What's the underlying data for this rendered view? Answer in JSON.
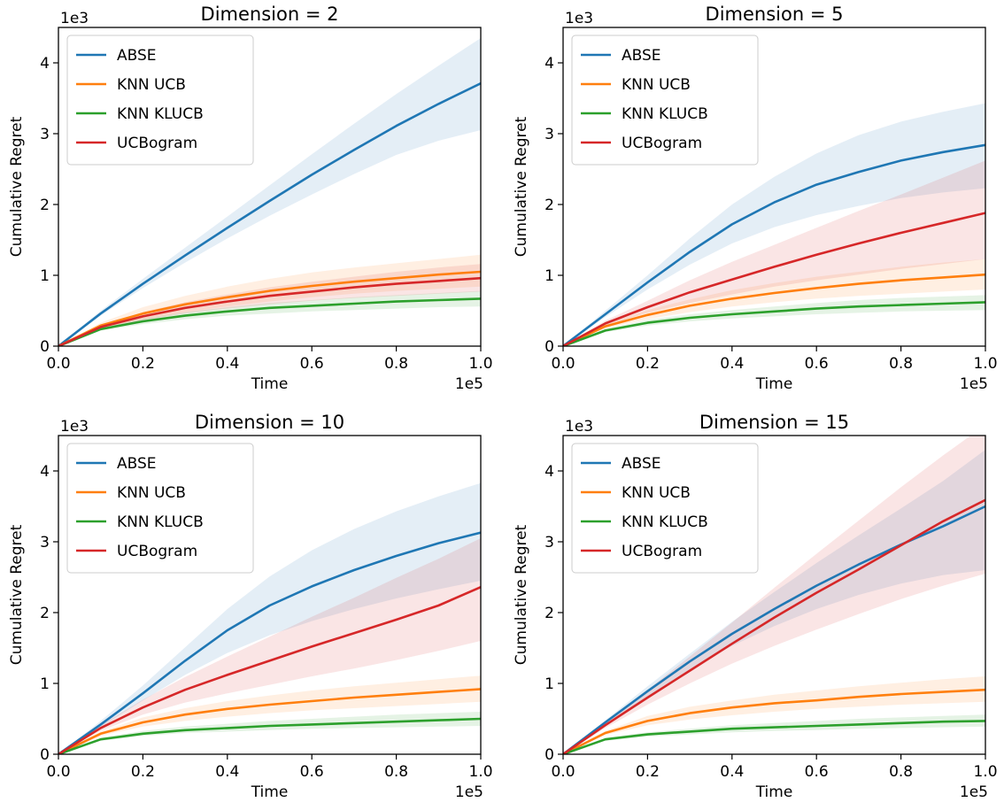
{
  "colors": {
    "ABSE": "#1f77b4",
    "KNN UCB": "#ff7f0e",
    "KNN KLUCB": "#2ca02c",
    "UCBogram": "#d62728"
  },
  "chart_data": [
    {
      "type": "line",
      "title": "Dimension = 2",
      "xlabel": "Time",
      "ylabel": "Cumulative Regret",
      "x_multiplier": "1e5",
      "y_multiplier": "1e3",
      "xlim": [
        0,
        1
      ],
      "ylim": [
        0,
        4.5
      ],
      "xticks": [
        "0.0",
        "0.2",
        "0.4",
        "0.6",
        "0.8",
        "1.0"
      ],
      "yticks": [
        "0",
        "1",
        "2",
        "3",
        "4"
      ],
      "legend_position": "upper-left",
      "grid": false,
      "x": [
        0,
        0.1,
        0.2,
        0.3,
        0.4,
        0.5,
        0.6,
        0.7,
        0.8,
        0.9,
        1.0
      ],
      "series": [
        {
          "name": "ABSE",
          "values": [
            0,
            0.46,
            0.88,
            1.28,
            1.67,
            2.05,
            2.42,
            2.77,
            3.11,
            3.42,
            3.71
          ],
          "lower": [
            0,
            0.43,
            0.82,
            1.18,
            1.52,
            1.84,
            2.14,
            2.43,
            2.7,
            2.9,
            3.05
          ],
          "upper": [
            0,
            0.5,
            0.95,
            1.39,
            1.83,
            2.27,
            2.71,
            3.14,
            3.56,
            3.96,
            4.35
          ]
        },
        {
          "name": "KNN UCB",
          "values": [
            0,
            0.29,
            0.46,
            0.59,
            0.69,
            0.78,
            0.85,
            0.91,
            0.96,
            1.01,
            1.05
          ],
          "lower": [
            0,
            0.25,
            0.38,
            0.48,
            0.56,
            0.63,
            0.69,
            0.74,
            0.78,
            0.81,
            0.84
          ],
          "upper": [
            0,
            0.33,
            0.55,
            0.71,
            0.84,
            0.95,
            1.04,
            1.11,
            1.17,
            1.23,
            1.29
          ]
        },
        {
          "name": "KNN KLUCB",
          "values": [
            0,
            0.24,
            0.35,
            0.43,
            0.49,
            0.54,
            0.57,
            0.6,
            0.63,
            0.65,
            0.67
          ],
          "lower": [
            0,
            0.22,
            0.31,
            0.38,
            0.43,
            0.46,
            0.49,
            0.51,
            0.53,
            0.55,
            0.56
          ],
          "upper": [
            0,
            0.26,
            0.39,
            0.48,
            0.55,
            0.61,
            0.65,
            0.69,
            0.72,
            0.75,
            0.78
          ]
        },
        {
          "name": "UCBogram",
          "values": [
            0,
            0.27,
            0.42,
            0.54,
            0.63,
            0.71,
            0.77,
            0.83,
            0.88,
            0.92,
            0.96
          ],
          "lower": [
            0,
            0.24,
            0.36,
            0.46,
            0.53,
            0.59,
            0.64,
            0.68,
            0.71,
            0.74,
            0.77
          ],
          "upper": [
            0,
            0.3,
            0.48,
            0.62,
            0.73,
            0.83,
            0.91,
            0.98,
            1.05,
            1.11,
            1.16
          ]
        }
      ]
    },
    {
      "type": "line",
      "title": "Dimension = 5",
      "xlabel": "Time",
      "ylabel": "Cumulative Regret",
      "x_multiplier": "1e5",
      "y_multiplier": "1e3",
      "xlim": [
        0,
        1
      ],
      "ylim": [
        0,
        4.5
      ],
      "xticks": [
        "0.0",
        "0.2",
        "0.4",
        "0.6",
        "0.8",
        "1.0"
      ],
      "yticks": [
        "0",
        "1",
        "2",
        "3",
        "4"
      ],
      "legend_position": "upper-left",
      "grid": false,
      "x": [
        0,
        0.1,
        0.2,
        0.3,
        0.4,
        0.5,
        0.6,
        0.7,
        0.8,
        0.9,
        1.0
      ],
      "series": [
        {
          "name": "ABSE",
          "values": [
            0,
            0.45,
            0.9,
            1.33,
            1.72,
            2.03,
            2.28,
            2.46,
            2.62,
            2.74,
            2.84
          ],
          "lower": [
            0,
            0.41,
            0.8,
            1.15,
            1.45,
            1.68,
            1.85,
            1.98,
            2.09,
            2.17,
            2.23
          ],
          "upper": [
            0,
            0.5,
            1.0,
            1.52,
            2.0,
            2.39,
            2.72,
            2.98,
            3.17,
            3.31,
            3.43
          ]
        },
        {
          "name": "KNN UCB",
          "values": [
            0,
            0.28,
            0.44,
            0.57,
            0.67,
            0.75,
            0.82,
            0.88,
            0.93,
            0.97,
            1.01
          ],
          "lower": [
            0,
            0.25,
            0.38,
            0.48,
            0.56,
            0.62,
            0.67,
            0.71,
            0.74,
            0.77,
            0.8
          ],
          "upper": [
            0,
            0.31,
            0.51,
            0.66,
            0.79,
            0.89,
            0.98,
            1.05,
            1.12,
            1.18,
            1.23
          ]
        },
        {
          "name": "KNN KLUCB",
          "values": [
            0,
            0.22,
            0.33,
            0.4,
            0.45,
            0.49,
            0.53,
            0.56,
            0.58,
            0.6,
            0.62
          ],
          "lower": [
            0,
            0.2,
            0.29,
            0.35,
            0.39,
            0.42,
            0.45,
            0.47,
            0.49,
            0.5,
            0.51
          ],
          "upper": [
            0,
            0.24,
            0.37,
            0.45,
            0.51,
            0.56,
            0.61,
            0.65,
            0.68,
            0.7,
            0.72
          ]
        },
        {
          "name": "UCBogram",
          "values": [
            0,
            0.32,
            0.55,
            0.76,
            0.94,
            1.12,
            1.29,
            1.45,
            1.6,
            1.74,
            1.88
          ],
          "lower": [
            0,
            0.29,
            0.47,
            0.61,
            0.73,
            0.84,
            0.93,
            1.01,
            1.09,
            1.16,
            1.23
          ],
          "upper": [
            0,
            0.36,
            0.64,
            0.93,
            1.19,
            1.43,
            1.67,
            1.91,
            2.14,
            2.38,
            2.62
          ]
        }
      ]
    },
    {
      "type": "line",
      "title": "Dimension = 10",
      "xlabel": "Time",
      "ylabel": "Cumulative Regret",
      "x_multiplier": "1e5",
      "y_multiplier": "1e3",
      "xlim": [
        0,
        1
      ],
      "ylim": [
        0,
        4.5
      ],
      "xticks": [
        "0.0",
        "0.2",
        "0.4",
        "0.6",
        "0.8",
        "1.0"
      ],
      "yticks": [
        "0",
        "1",
        "2",
        "3",
        "4"
      ],
      "legend_position": "upper-left",
      "grid": false,
      "x": [
        0,
        0.1,
        0.2,
        0.3,
        0.4,
        0.5,
        0.6,
        0.7,
        0.8,
        0.9,
        1.0
      ],
      "series": [
        {
          "name": "ABSE",
          "values": [
            0,
            0.42,
            0.86,
            1.32,
            1.75,
            2.1,
            2.37,
            2.6,
            2.8,
            2.98,
            3.13
          ],
          "lower": [
            0,
            0.38,
            0.76,
            1.12,
            1.43,
            1.68,
            1.88,
            2.05,
            2.2,
            2.33,
            2.45
          ],
          "upper": [
            0,
            0.47,
            0.97,
            1.51,
            2.05,
            2.51,
            2.88,
            3.18,
            3.43,
            3.64,
            3.83
          ]
        },
        {
          "name": "KNN UCB",
          "values": [
            0,
            0.29,
            0.45,
            0.56,
            0.64,
            0.7,
            0.75,
            0.8,
            0.84,
            0.88,
            0.92
          ],
          "lower": [
            0,
            0.26,
            0.39,
            0.47,
            0.53,
            0.58,
            0.62,
            0.65,
            0.68,
            0.71,
            0.74
          ],
          "upper": [
            0,
            0.32,
            0.52,
            0.65,
            0.75,
            0.83,
            0.9,
            0.96,
            1.01,
            1.06,
            1.11
          ]
        },
        {
          "name": "KNN KLUCB",
          "values": [
            0,
            0.21,
            0.29,
            0.34,
            0.37,
            0.4,
            0.42,
            0.44,
            0.46,
            0.48,
            0.5
          ],
          "lower": [
            0,
            0.19,
            0.26,
            0.3,
            0.32,
            0.34,
            0.36,
            0.37,
            0.38,
            0.39,
            0.4
          ],
          "upper": [
            0,
            0.23,
            0.33,
            0.39,
            0.43,
            0.47,
            0.5,
            0.53,
            0.56,
            0.58,
            0.6
          ]
        },
        {
          "name": "UCBogram",
          "values": [
            0,
            0.37,
            0.66,
            0.91,
            1.12,
            1.32,
            1.52,
            1.71,
            1.9,
            2.1,
            2.36
          ],
          "lower": [
            0,
            0.33,
            0.56,
            0.73,
            0.86,
            0.98,
            1.1,
            1.21,
            1.33,
            1.46,
            1.6
          ],
          "upper": [
            0,
            0.41,
            0.77,
            1.09,
            1.38,
            1.66,
            1.94,
            2.21,
            2.49,
            2.76,
            3.05
          ]
        }
      ]
    },
    {
      "type": "line",
      "title": "Dimension = 15",
      "xlabel": "Time",
      "ylabel": "Cumulative Regret",
      "x_multiplier": "1e5",
      "y_multiplier": "1e3",
      "xlim": [
        0,
        1
      ],
      "ylim": [
        0,
        4.5
      ],
      "xticks": [
        "0.0",
        "0.2",
        "0.4",
        "0.6",
        "0.8",
        "1.0"
      ],
      "yticks": [
        "0",
        "1",
        "2",
        "3",
        "4"
      ],
      "legend_position": "upper-left",
      "grid": false,
      "x": [
        0,
        0.1,
        0.2,
        0.3,
        0.4,
        0.5,
        0.6,
        0.7,
        0.8,
        0.9,
        1.0
      ],
      "series": [
        {
          "name": "ABSE",
          "values": [
            0,
            0.45,
            0.89,
            1.31,
            1.7,
            2.05,
            2.38,
            2.68,
            2.96,
            3.22,
            3.5
          ],
          "lower": [
            0,
            0.42,
            0.82,
            1.2,
            1.53,
            1.81,
            2.05,
            2.25,
            2.41,
            2.53,
            2.6
          ],
          "upper": [
            0,
            0.48,
            0.96,
            1.42,
            1.87,
            2.29,
            2.7,
            3.09,
            3.47,
            3.86,
            4.3
          ]
        },
        {
          "name": "KNN UCB",
          "values": [
            0,
            0.3,
            0.47,
            0.58,
            0.66,
            0.72,
            0.76,
            0.81,
            0.85,
            0.88,
            0.91
          ],
          "lower": [
            0,
            0.27,
            0.41,
            0.49,
            0.55,
            0.6,
            0.64,
            0.67,
            0.7,
            0.72,
            0.74
          ],
          "upper": [
            0,
            0.33,
            0.54,
            0.67,
            0.76,
            0.84,
            0.9,
            0.96,
            1.01,
            1.06,
            1.1
          ]
        },
        {
          "name": "KNN KLUCB",
          "values": [
            0,
            0.21,
            0.28,
            0.32,
            0.36,
            0.38,
            0.4,
            0.42,
            0.44,
            0.46,
            0.47
          ],
          "lower": [
            0,
            0.19,
            0.25,
            0.28,
            0.31,
            0.33,
            0.34,
            0.36,
            0.37,
            0.38,
            0.39
          ],
          "upper": [
            0,
            0.23,
            0.31,
            0.36,
            0.41,
            0.44,
            0.47,
            0.5,
            0.52,
            0.54,
            0.56
          ]
        },
        {
          "name": "UCBogram",
          "values": [
            0,
            0.41,
            0.8,
            1.18,
            1.56,
            1.93,
            2.28,
            2.61,
            2.95,
            3.29,
            3.59
          ],
          "lower": [
            0,
            0.37,
            0.7,
            1.0,
            1.28,
            1.53,
            1.76,
            1.98,
            2.19,
            2.38,
            2.55
          ],
          "upper": [
            0,
            0.45,
            0.91,
            1.38,
            1.86,
            2.35,
            2.83,
            3.3,
            3.77,
            4.22,
            4.65
          ]
        }
      ]
    }
  ]
}
